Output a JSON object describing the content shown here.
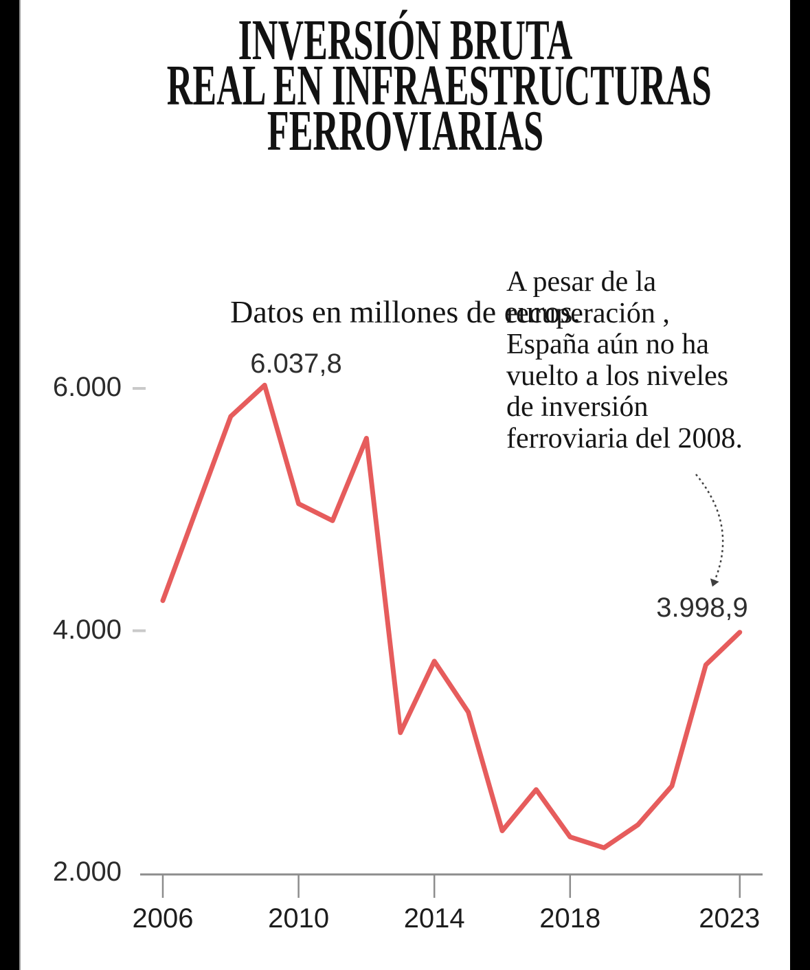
{
  "title": {
    "line1": "INVERSIÓN BRUTA",
    "line2": "REAL EN INFRAESTRUCTURAS",
    "line3": "FERROVIARIAS"
  },
  "subtitle": "Datos en millones de euros.",
  "annotation": {
    "lines": [
      "A pesar de la",
      "recuperación ,",
      "España aún no ha",
      "vuelto a los niveles",
      "de inversión",
      "ferroviaria del 2008."
    ]
  },
  "labels": {
    "peak": "6.037,8",
    "latest": "3.998,9"
  },
  "axis": {
    "y_tick_labels": [
      "6.000",
      "4.000",
      "2.000"
    ],
    "y_tick_values": [
      6000,
      4000,
      2000
    ],
    "x_tick_labels": [
      "2006",
      "2010",
      "2014",
      "2018",
      "2023"
    ],
    "x_tick_years": [
      2006,
      2010,
      2014,
      2018,
      2023
    ]
  },
  "colors": {
    "line": "#e65c5c",
    "axis": "#8c8c8c",
    "y_dash": "#c9c9c9",
    "text": "#151515",
    "value_label": "#2e2e2e",
    "frame": "#000000"
  },
  "chart_data": {
    "type": "line",
    "title": "INVERSIÓN BRUTA REAL EN INFRAESTRUCTURAS FERROVIARIAS",
    "subtitle": "Datos en millones de euros.",
    "xlabel": "",
    "ylabel": "Millones de euros",
    "x": [
      2006,
      2007,
      2008,
      2009,
      2010,
      2011,
      2012,
      2013,
      2014,
      2015,
      2016,
      2017,
      2018,
      2019,
      2020,
      2021,
      2022,
      2023
    ],
    "values": [
      4260,
      5020,
      5780,
      6037.8,
      5060,
      4920,
      5600,
      3170,
      3760,
      3340,
      2360,
      2700,
      2310,
      2220,
      2410,
      2730,
      3730,
      3998.9
    ],
    "ylim": [
      2000,
      6400
    ],
    "grid": false,
    "legend": "none",
    "point_labels": [
      {
        "x": 2009,
        "value": 6037.8,
        "text": "6.037,8"
      },
      {
        "x": 2023,
        "value": 3998.9,
        "text": "3.998,9"
      }
    ]
  }
}
